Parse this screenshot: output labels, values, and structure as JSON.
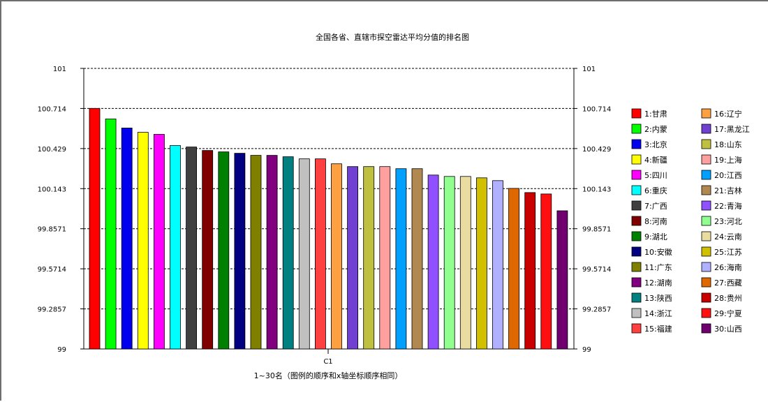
{
  "chart_data": {
    "type": "bar",
    "title": "全国各省、直辖市探空雷达平均分值的排名图",
    "xlabel": "1~30名（图例的顺序和x轴坐标顺序相同）",
    "x_tick": "C1",
    "ylim": [
      99,
      101
    ],
    "y_ticks": [
      "101",
      "100.714",
      "100.429",
      "100.143",
      "99.8571",
      "99.5714",
      "99.2857",
      "99"
    ],
    "legend_position": "right",
    "series": [
      {
        "name": "1:甘肃",
        "value": 100.715,
        "color": "#ff0000"
      },
      {
        "name": "2:内蒙",
        "value": 100.64,
        "color": "#00ff00"
      },
      {
        "name": "3:北京",
        "value": 100.575,
        "color": "#0000ee"
      },
      {
        "name": "4:新疆",
        "value": 100.545,
        "color": "#ffff00"
      },
      {
        "name": "5:四川",
        "value": 100.53,
        "color": "#ff00ff"
      },
      {
        "name": "6:重庆",
        "value": 100.45,
        "color": "#00ffff"
      },
      {
        "name": "7:广西",
        "value": 100.44,
        "color": "#404040"
      },
      {
        "name": "8:河南",
        "value": 100.415,
        "color": "#800000"
      },
      {
        "name": "9:湖北",
        "value": 100.405,
        "color": "#008000"
      },
      {
        "name": "10:安徽",
        "value": 100.395,
        "color": "#000080"
      },
      {
        "name": "11:广东",
        "value": 100.38,
        "color": "#808000"
      },
      {
        "name": "12:湖南",
        "value": 100.38,
        "color": "#800080"
      },
      {
        "name": "13:陕西",
        "value": 100.37,
        "color": "#008080"
      },
      {
        "name": "14:浙江",
        "value": 100.355,
        "color": "#c0c0c0"
      },
      {
        "name": "15:福建",
        "value": 100.355,
        "color": "#ff4040"
      },
      {
        "name": "16:辽宁",
        "value": 100.32,
        "color": "#ffa040"
      },
      {
        "name": "17:黑龙江",
        "value": 100.3,
        "color": "#7040d0"
      },
      {
        "name": "18:山东",
        "value": 100.3,
        "color": "#c0c040"
      },
      {
        "name": "19:上海",
        "value": 100.3,
        "color": "#ffa0a0"
      },
      {
        "name": "20:江西",
        "value": 100.285,
        "color": "#00a0ff"
      },
      {
        "name": "21:吉林",
        "value": 100.285,
        "color": "#b08850"
      },
      {
        "name": "22:青海",
        "value": 100.24,
        "color": "#9050ff"
      },
      {
        "name": "23:河北",
        "value": 100.23,
        "color": "#90ff90"
      },
      {
        "name": "24:云南",
        "value": 100.23,
        "color": "#e8dca0"
      },
      {
        "name": "25:江苏",
        "value": 100.22,
        "color": "#d0c000"
      },
      {
        "name": "26:海南",
        "value": 100.2,
        "color": "#b0b0ff"
      },
      {
        "name": "27:西藏",
        "value": 100.145,
        "color": "#e06800"
      },
      {
        "name": "28:贵州",
        "value": 100.115,
        "color": "#c80000"
      },
      {
        "name": "29:宁夏",
        "value": 100.105,
        "color": "#ff1010"
      },
      {
        "name": "30:山西",
        "value": 99.985,
        "color": "#700070"
      }
    ]
  }
}
